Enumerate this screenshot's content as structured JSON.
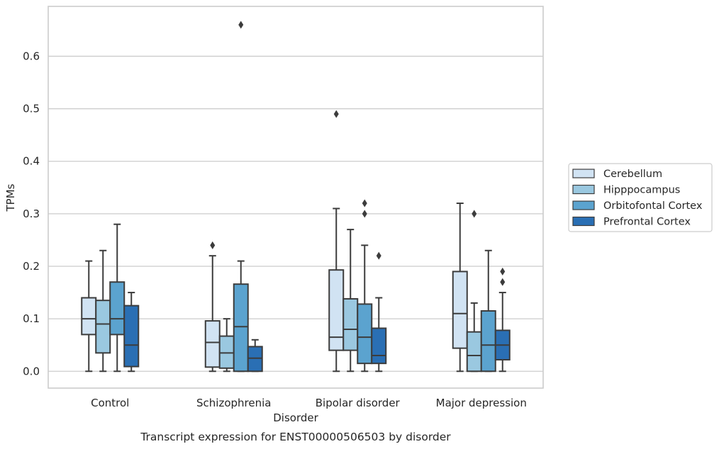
{
  "chart_data": {
    "type": "box",
    "title": "",
    "caption": "Transcript expression for ENST00000506503 by disorder",
    "xlabel": "Disorder",
    "ylabel": "TPMs",
    "categories": [
      "Control",
      "Schizophrenia",
      "Bipolar disorder",
      "Major depression"
    ],
    "ylim": [
      -0.032,
      0.695
    ],
    "yticks": [
      {
        "value": 0.0,
        "label": "0.0"
      },
      {
        "value": 0.1,
        "label": "0.1"
      },
      {
        "value": 0.2,
        "label": "0.2"
      },
      {
        "value": 0.3,
        "label": "0.3"
      },
      {
        "value": 0.4,
        "label": "0.4"
      },
      {
        "value": 0.5,
        "label": "0.5"
      },
      {
        "value": 0.6,
        "label": "0.6"
      }
    ],
    "grid": "horizontal",
    "legend_position": "right",
    "series": [
      {
        "name": "Cerebellum",
        "color": "#d1e3f3",
        "boxes": [
          {
            "category": "Control",
            "whisker_low": 0.0,
            "q1": 0.07,
            "median": 0.1,
            "q3": 0.14,
            "whisker_high": 0.21,
            "outliers": []
          },
          {
            "category": "Schizophrenia",
            "whisker_low": 0.0,
            "q1": 0.008,
            "median": 0.055,
            "q3": 0.096,
            "whisker_high": 0.22,
            "outliers": [
              0.24
            ]
          },
          {
            "category": "Bipolar disorder",
            "whisker_low": 0.0,
            "q1": 0.04,
            "median": 0.065,
            "q3": 0.193,
            "whisker_high": 0.31,
            "outliers": [
              0.49
            ]
          },
          {
            "category": "Major depression",
            "whisker_low": 0.0,
            "q1": 0.044,
            "median": 0.11,
            "q3": 0.19,
            "whisker_high": 0.32,
            "outliers": []
          }
        ]
      },
      {
        "name": "Hipppocampus",
        "color": "#9ac8e0",
        "boxes": [
          {
            "category": "Control",
            "whisker_low": 0.0,
            "q1": 0.035,
            "median": 0.09,
            "q3": 0.135,
            "whisker_high": 0.23,
            "outliers": []
          },
          {
            "category": "Schizophrenia",
            "whisker_low": 0.0,
            "q1": 0.006,
            "median": 0.035,
            "q3": 0.067,
            "whisker_high": 0.1,
            "outliers": []
          },
          {
            "category": "Bipolar disorder",
            "whisker_low": 0.0,
            "q1": 0.04,
            "median": 0.08,
            "q3": 0.138,
            "whisker_high": 0.27,
            "outliers": []
          },
          {
            "category": "Major depression",
            "whisker_low": 0.0,
            "q1": 0.0,
            "median": 0.03,
            "q3": 0.075,
            "whisker_high": 0.13,
            "outliers": [
              0.3
            ]
          }
        ]
      },
      {
        "name": "Orbitofontal Cortex",
        "color": "#5ba3cf",
        "boxes": [
          {
            "category": "Control",
            "whisker_low": 0.0,
            "q1": 0.07,
            "median": 0.1,
            "q3": 0.17,
            "whisker_high": 0.28,
            "outliers": []
          },
          {
            "category": "Schizophrenia",
            "whisker_low": 0.0,
            "q1": 0.0,
            "median": 0.085,
            "q3": 0.166,
            "whisker_high": 0.21,
            "outliers": [
              0.66
            ]
          },
          {
            "category": "Bipolar disorder",
            "whisker_low": 0.0,
            "q1": 0.015,
            "median": 0.065,
            "q3": 0.128,
            "whisker_high": 0.24,
            "outliers": [
              0.3,
              0.32
            ]
          },
          {
            "category": "Major depression",
            "whisker_low": 0.0,
            "q1": 0.0,
            "median": 0.05,
            "q3": 0.115,
            "whisker_high": 0.23,
            "outliers": []
          }
        ]
      },
      {
        "name": "Prefrontal Cortex",
        "color": "#2a6fb4",
        "boxes": [
          {
            "category": "Control",
            "whisker_low": 0.0,
            "q1": 0.009,
            "median": 0.05,
            "q3": 0.125,
            "whisker_high": 0.15,
            "outliers": []
          },
          {
            "category": "Schizophrenia",
            "whisker_low": 0.0,
            "q1": 0.0,
            "median": 0.025,
            "q3": 0.047,
            "whisker_high": 0.06,
            "outliers": []
          },
          {
            "category": "Bipolar disorder",
            "whisker_low": 0.0,
            "q1": 0.015,
            "median": 0.03,
            "q3": 0.082,
            "whisker_high": 0.14,
            "outliers": [
              0.22
            ]
          },
          {
            "category": "Major depression",
            "whisker_low": 0.0,
            "q1": 0.022,
            "median": 0.05,
            "q3": 0.078,
            "whisker_high": 0.15,
            "outliers": [
              0.17,
              0.19
            ]
          }
        ]
      }
    ]
  }
}
